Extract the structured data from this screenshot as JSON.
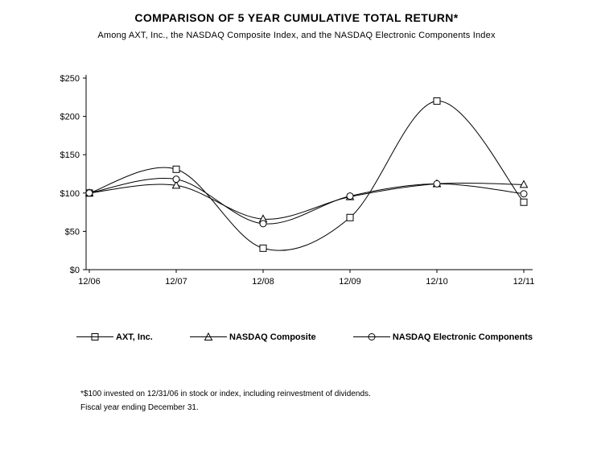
{
  "chart_data": {
    "type": "line",
    "title": "COMPARISON OF 5 YEAR CUMULATIVE TOTAL RETURN*",
    "subtitle": "Among AXT, Inc., the NASDAQ Composite Index, and the NASDAQ Electronic Components Index",
    "categories": [
      "12/06",
      "12/07",
      "12/08",
      "12/09",
      "12/10",
      "12/11"
    ],
    "series": [
      {
        "name": "AXT, Inc.",
        "marker": "square",
        "values": [
          100,
          131,
          28,
          68,
          220,
          88
        ]
      },
      {
        "name": "NASDAQ Composite",
        "marker": "triangle",
        "values": [
          100,
          110,
          66,
          95,
          112,
          111
        ]
      },
      {
        "name": "NASDAQ Electronic Components",
        "marker": "circle",
        "values": [
          100,
          118,
          60,
          96,
          112,
          99
        ]
      }
    ],
    "xlabel": "",
    "ylabel": "",
    "ylim": [
      0,
      250
    ],
    "y_ticks": [
      0,
      50,
      100,
      150,
      200,
      250
    ],
    "y_tick_labels": [
      "$0",
      "$50",
      "$100",
      "$150",
      "$200",
      "$250"
    ],
    "grid": false,
    "smooth": true,
    "legend_position": "bottom",
    "line_color": "#000000",
    "background_color": "#ffffff"
  },
  "footnotes": [
    "*$100 invested on 12/31/06 in stock or index, including reinvestment of dividends.",
    "Fiscal year ending December 31."
  ]
}
